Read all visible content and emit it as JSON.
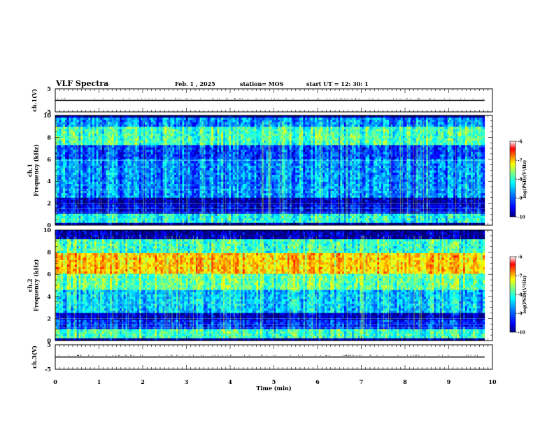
{
  "header": {
    "title": "VLF Spectra",
    "date": "Feb. 1 , 2025",
    "station": "station= MOS",
    "start": "start UT = 12: 30: 1"
  },
  "colors": {
    "colormap": [
      "#00007f",
      "#0000ff",
      "#007fff",
      "#00ffff",
      "#7fff7f",
      "#ffff00",
      "#ff7f00",
      "#ff0000",
      "#ffffff"
    ],
    "background": "#000030",
    "axis": "#000000"
  },
  "chart_data": [
    {
      "type": "line",
      "panel": "ch1-voltage",
      "ylabel": "ch.1(V)",
      "ylim": [
        -5,
        5
      ],
      "yticks": [
        "5",
        "-5"
      ],
      "x": [
        0,
        9.82
      ],
      "values": [
        0,
        0
      ]
    },
    {
      "type": "heatmap",
      "panel": "ch1-spectrogram",
      "ylabel": "ch.1\nFrequency (kHz)",
      "ylim": [
        0,
        10
      ],
      "yticks": [
        "0",
        "2",
        "4",
        "6",
        "8",
        "10"
      ],
      "xlim": [
        0,
        9.82
      ],
      "colorbar": {
        "label": "log(PSD)(V²/Hz)",
        "range": [
          -10,
          -6
        ],
        "ticks": [
          "-6",
          "-7",
          "-8",
          "-9",
          "-10"
        ]
      },
      "bands": [
        {
          "f0": 0.0,
          "f1": 0.3,
          "level": 0.05
        },
        {
          "f0": 0.3,
          "f1": 1.0,
          "level": 0.45
        },
        {
          "f0": 1.0,
          "f1": 1.8,
          "level": 0.12
        },
        {
          "f0": 1.8,
          "f1": 2.6,
          "level": 0.05
        },
        {
          "f0": 2.6,
          "f1": 6.0,
          "level": 0.3
        },
        {
          "f0": 6.0,
          "f1": 7.2,
          "level": 0.22
        },
        {
          "f0": 7.2,
          "f1": 9.0,
          "level": 0.5
        },
        {
          "f0": 9.0,
          "f1": 9.7,
          "level": 0.3
        },
        {
          "f0": 9.7,
          "f1": 10.0,
          "level": 0.02
        }
      ]
    },
    {
      "type": "heatmap",
      "panel": "ch2-spectrogram",
      "ylabel": "ch.2\nFrequency (kHz)",
      "ylim": [
        0,
        10
      ],
      "yticks": [
        "0",
        "2",
        "4",
        "6",
        "8",
        "10"
      ],
      "xlim": [
        0,
        9.82
      ],
      "colorbar": {
        "label": "log(PSD)(V²/Hz)",
        "range": [
          -10,
          -6
        ],
        "ticks": [
          "-6",
          "-7",
          "-8",
          "-9",
          "-10"
        ]
      },
      "bands": [
        {
          "f0": 0.0,
          "f1": 0.3,
          "level": 0.05
        },
        {
          "f0": 0.3,
          "f1": 1.0,
          "level": 0.5
        },
        {
          "f0": 1.0,
          "f1": 1.8,
          "level": 0.2
        },
        {
          "f0": 1.8,
          "f1": 2.4,
          "level": 0.08
        },
        {
          "f0": 2.4,
          "f1": 4.5,
          "level": 0.38
        },
        {
          "f0": 4.5,
          "f1": 6.0,
          "level": 0.55
        },
        {
          "f0": 6.0,
          "f1": 8.0,
          "level": 0.78
        },
        {
          "f0": 8.0,
          "f1": 9.2,
          "level": 0.5
        },
        {
          "f0": 9.2,
          "f1": 10.0,
          "level": 0.05
        }
      ]
    },
    {
      "type": "line",
      "panel": "ch3-voltage",
      "ylabel": "ch.3(V)",
      "ylim": [
        -5,
        5
      ],
      "yticks": [
        "5",
        "-5"
      ],
      "x": [
        0,
        9.82
      ],
      "values": [
        0,
        0
      ]
    }
  ],
  "xaxis": {
    "label": "Time (min)",
    "range": [
      0,
      10
    ],
    "ticks": [
      "0",
      "1",
      "2",
      "3",
      "4",
      "5",
      "6",
      "7",
      "8",
      "9",
      "10"
    ]
  }
}
